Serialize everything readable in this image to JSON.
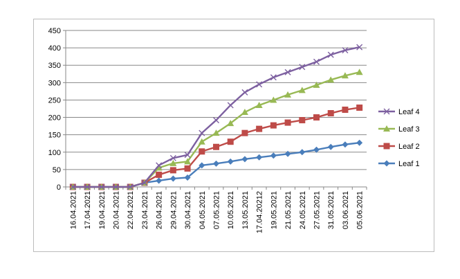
{
  "chart_data": {
    "type": "line",
    "title": "",
    "xlabel": "",
    "ylabel": "",
    "ylim": [
      0,
      450
    ],
    "yticks": [
      0,
      50,
      100,
      150,
      200,
      250,
      300,
      350,
      400,
      450
    ],
    "grid": true,
    "legend_position": "right",
    "categories": [
      "16.04.2021",
      "17.04.2021",
      "19.04.2021",
      "20.04.2021",
      "22.04.2021",
      "23.04.2021",
      "26.04.2021",
      "29.04.2021",
      "30.04.2021",
      "04.05.2021",
      "07.05.2021",
      "10.05.2021",
      "13.05.2021",
      "17.04.20212",
      "19.05.2021",
      "21.05.2021",
      "24.05.2021",
      "27.05.2021",
      "31.05.2021",
      "03.06.2021",
      "05.06.2021"
    ],
    "series": [
      {
        "name": "Leaf 4",
        "color": "#7d60a0",
        "marker": "x",
        "values": [
          0,
          0,
          0,
          0,
          0,
          12,
          62,
          83,
          92,
          155,
          192,
          235,
          272,
          295,
          315,
          330,
          345,
          360,
          380,
          393,
          402
        ]
      },
      {
        "name": "Leaf 3",
        "color": "#98b954",
        "marker": "triangle",
        "values": [
          0,
          0,
          0,
          0,
          0,
          12,
          55,
          68,
          73,
          130,
          155,
          183,
          215,
          235,
          250,
          265,
          278,
          293,
          308,
          320,
          330
        ]
      },
      {
        "name": "Leaf 2",
        "color": "#be4b48",
        "marker": "square",
        "values": [
          0,
          0,
          0,
          0,
          0,
          12,
          35,
          48,
          53,
          102,
          115,
          130,
          155,
          167,
          177,
          185,
          192,
          200,
          212,
          222,
          228
        ]
      },
      {
        "name": "Leaf 1",
        "color": "#4a7ebb",
        "marker": "diamond",
        "values": [
          0,
          0,
          0,
          0,
          0,
          12,
          18,
          24,
          27,
          62,
          67,
          73,
          80,
          85,
          90,
          95,
          100,
          107,
          115,
          122,
          127
        ]
      }
    ]
  }
}
